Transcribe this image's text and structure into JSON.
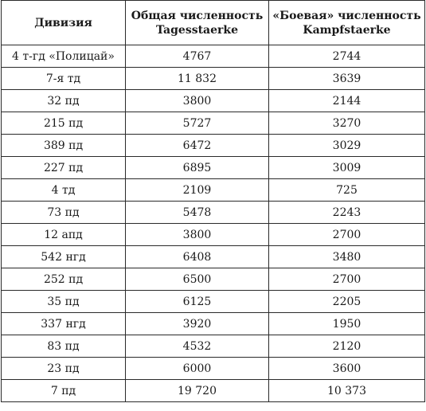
{
  "table": {
    "headers": {
      "division": "Дивизия",
      "total_line1": "Общая численность",
      "total_line2": "Tagesstaerke",
      "combat_line1": "«Боевая» численность",
      "combat_line2": "Kampfstaerke"
    },
    "rows": [
      {
        "division": "4 т-гд «Полицай»",
        "total": "4767",
        "combat": "2744"
      },
      {
        "division": "7-я тд",
        "total": "11 832",
        "combat": "3639"
      },
      {
        "division": "32 пд",
        "total": "3800",
        "combat": "2144"
      },
      {
        "division": "215 пд",
        "total": "5727",
        "combat": "3270"
      },
      {
        "division": "389 пд",
        "total": "6472",
        "combat": "3029"
      },
      {
        "division": "227 пд",
        "total": "6895",
        "combat": "3009"
      },
      {
        "division": "4 тд",
        "total": "2109",
        "combat": "725"
      },
      {
        "division": "73 пд",
        "total": "5478",
        "combat": "2243"
      },
      {
        "division": "12 апд",
        "total": "3800",
        "combat": "2700"
      },
      {
        "division": "542 нгд",
        "total": "6408",
        "combat": "3480"
      },
      {
        "division": "252 пд",
        "total": "6500",
        "combat": "2700"
      },
      {
        "division": "35 пд",
        "total": "6125",
        "combat": "2205"
      },
      {
        "division": "337 нгд",
        "total": "3920",
        "combat": "1950"
      },
      {
        "division": "83 пд",
        "total": "4532",
        "combat": "2120"
      },
      {
        "division": "23 пд",
        "total": "6000",
        "combat": "3600"
      },
      {
        "division": "7 пд",
        "total": "19 720",
        "combat": "10 373"
      }
    ]
  }
}
